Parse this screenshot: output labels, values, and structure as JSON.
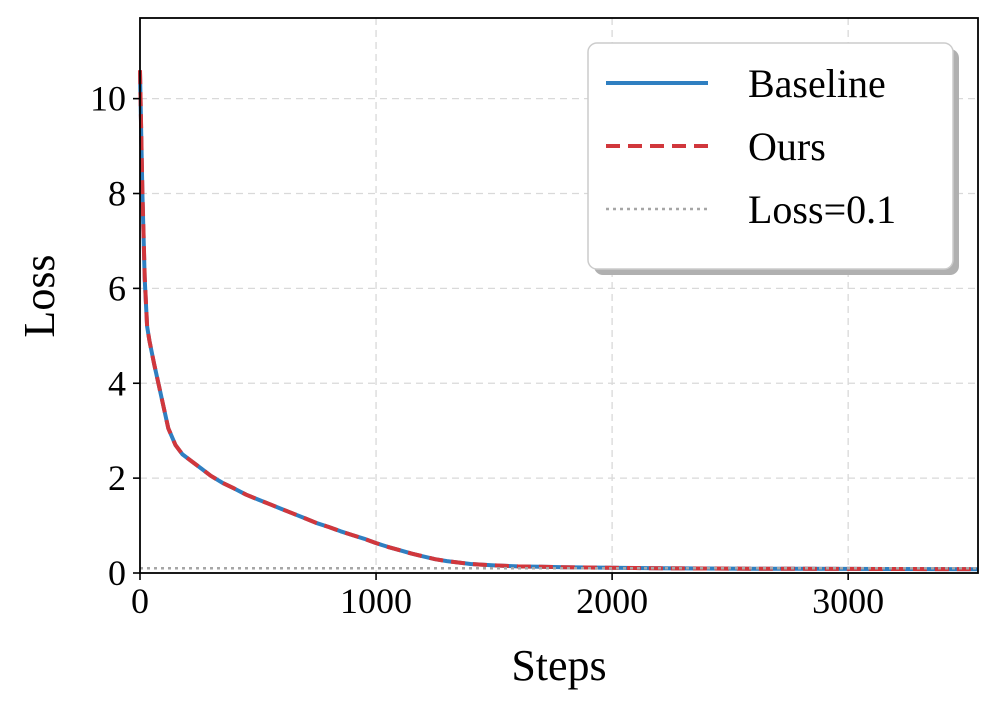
{
  "chart_data": {
    "type": "line",
    "title": "",
    "xlabel": "Steps",
    "ylabel": "Loss",
    "xlim": [
      0,
      3550
    ],
    "ylim": [
      0,
      11.7
    ],
    "x_ticks": [
      0,
      1000,
      2000,
      3000
    ],
    "x_tick_labels": [
      "0",
      "1000",
      "2000",
      "3000"
    ],
    "y_ticks": [
      0,
      2,
      4,
      6,
      8,
      10
    ],
    "y_tick_labels": [
      "0",
      "2",
      "4",
      "6",
      "8",
      "10"
    ],
    "grid": true,
    "legend_position": "top-right",
    "series": [
      {
        "name": "Baseline",
        "color": "#2f7fc1",
        "line_style": "solid",
        "x": [
          0,
          10,
          20,
          30,
          40,
          60,
          80,
          100,
          120,
          150,
          180,
          220,
          260,
          300,
          350,
          400,
          450,
          500,
          550,
          600,
          650,
          700,
          750,
          800,
          850,
          900,
          950,
          1000,
          1050,
          1100,
          1150,
          1200,
          1250,
          1300,
          1400,
          1500,
          1600,
          1700,
          1800,
          1900,
          2000,
          2200,
          2400,
          2600,
          2800,
          3000,
          3200,
          3400,
          3550
        ],
        "y": [
          10.55,
          8.0,
          6.2,
          5.2,
          4.9,
          4.4,
          3.95,
          3.5,
          3.05,
          2.7,
          2.5,
          2.35,
          2.2,
          2.05,
          1.9,
          1.78,
          1.65,
          1.55,
          1.45,
          1.35,
          1.25,
          1.15,
          1.05,
          0.97,
          0.88,
          0.8,
          0.72,
          0.63,
          0.55,
          0.48,
          0.41,
          0.35,
          0.29,
          0.25,
          0.19,
          0.16,
          0.14,
          0.13,
          0.12,
          0.115,
          0.11,
          0.1,
          0.095,
          0.09,
          0.088,
          0.086,
          0.084,
          0.082,
          0.08
        ]
      },
      {
        "name": "Ours",
        "color": "#d1373c",
        "line_style": "dashed",
        "x": [
          0,
          10,
          20,
          30,
          40,
          60,
          80,
          100,
          120,
          150,
          180,
          220,
          260,
          300,
          350,
          400,
          450,
          500,
          550,
          600,
          650,
          700,
          750,
          800,
          850,
          900,
          950,
          1000,
          1050,
          1100,
          1150,
          1200,
          1250,
          1300,
          1400,
          1500,
          1600,
          1700,
          1800,
          1900,
          2000,
          2200,
          2400,
          2600,
          2800,
          3000,
          3200,
          3400,
          3550
        ],
        "y": [
          10.6,
          8.05,
          6.25,
          5.2,
          4.9,
          4.4,
          3.95,
          3.5,
          3.05,
          2.7,
          2.5,
          2.35,
          2.2,
          2.05,
          1.9,
          1.78,
          1.65,
          1.55,
          1.45,
          1.35,
          1.25,
          1.15,
          1.05,
          0.97,
          0.88,
          0.8,
          0.72,
          0.63,
          0.55,
          0.48,
          0.41,
          0.35,
          0.29,
          0.25,
          0.19,
          0.16,
          0.14,
          0.13,
          0.12,
          0.115,
          0.11,
          0.1,
          0.095,
          0.09,
          0.088,
          0.086,
          0.084,
          0.082,
          0.08
        ]
      },
      {
        "name": "Loss=0.1",
        "color": "#a6a6a6",
        "line_style": "dotted",
        "x": [
          0,
          3550
        ],
        "y": [
          0.1,
          0.1
        ]
      }
    ]
  }
}
